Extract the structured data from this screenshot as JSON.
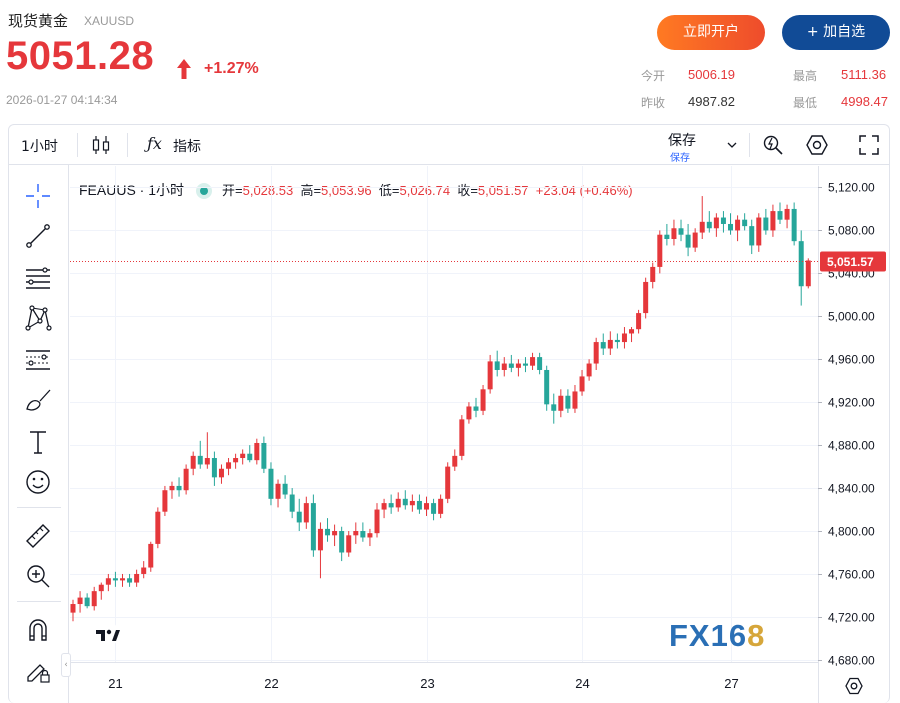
{
  "header": {
    "name": "现货黄金",
    "symbol": "XAUUSD",
    "price": "5051.28",
    "change_pct": "+1.27%",
    "timestamp": "2026-01-27 04:14:34",
    "open_account_label": "立即开户",
    "add_watch_label": "+ 加自选"
  },
  "stats": {
    "open_label": "今开",
    "open_value": "5006.19",
    "high_label": "最高",
    "high_value": "5111.36",
    "prev_close_label": "昨收",
    "prev_close_value": "4987.82",
    "low_label": "最低",
    "low_value": "4998.47"
  },
  "toolbar": {
    "interval": "1小时",
    "indicators_label": "指标",
    "save_label": "保存",
    "save_sub": "保存"
  },
  "legend": {
    "symbol": "FEAUUS · 1小时",
    "o_label": "开=",
    "o_value": "5,028.53",
    "h_label": "高=",
    "h_value": "5,053.96",
    "l_label": "低=",
    "l_value": "5,026.74",
    "c_label": "收=",
    "c_value": "5,051.57",
    "change": "+23.04 (+0.46%)"
  },
  "watermark": {
    "part1": "FX16",
    "part2": "8"
  },
  "colors": {
    "up": "#e5373b",
    "down": "#26a69a",
    "accent": "#2962ff",
    "brand_blue": "#114b96",
    "brand_orange": "#f15a24"
  },
  "chart_data": {
    "type": "candlestick",
    "x_ticks": [
      "21",
      "22",
      "23",
      "24",
      "27"
    ],
    "y_ticks": [
      "5,120.00",
      "5,080.00",
      "5,040.00",
      "5,000.00",
      "4,960.00",
      "4,920.00",
      "4,880.00",
      "4,840.00",
      "4,800.00",
      "4,760.00",
      "4,720.00",
      "4,680.00"
    ],
    "y_tick_values": [
      5120,
      5080,
      5040,
      5000,
      4960,
      4920,
      4880,
      4840,
      4800,
      4760,
      4720,
      4680
    ],
    "ylim": [
      4678,
      5140
    ],
    "last_price_label": "5,051.57",
    "last_price": 5051.57,
    "grid": true,
    "candles": [
      [
        4724,
        4736,
        4716,
        4732
      ],
      [
        4732,
        4744,
        4724,
        4738
      ],
      [
        4738,
        4742,
        4728,
        4730
      ],
      [
        4730,
        4748,
        4726,
        4744
      ],
      [
        4744,
        4752,
        4736,
        4750
      ],
      [
        4750,
        4760,
        4744,
        4756
      ],
      [
        4756,
        4762,
        4748,
        4754
      ],
      [
        4754,
        4760,
        4748,
        4756
      ],
      [
        4756,
        4760,
        4748,
        4752
      ],
      [
        4752,
        4764,
        4748,
        4760
      ],
      [
        4760,
        4772,
        4756,
        4766
      ],
      [
        4766,
        4790,
        4762,
        4788
      ],
      [
        4788,
        4822,
        4784,
        4818
      ],
      [
        4818,
        4842,
        4814,
        4838
      ],
      [
        4838,
        4846,
        4830,
        4842
      ],
      [
        4842,
        4850,
        4832,
        4838
      ],
      [
        4838,
        4862,
        4834,
        4858
      ],
      [
        4858,
        4874,
        4852,
        4870
      ],
      [
        4870,
        4884,
        4858,
        4862
      ],
      [
        4862,
        4892,
        4858,
        4868
      ],
      [
        4868,
        4874,
        4842,
        4850
      ],
      [
        4850,
        4862,
        4844,
        4858
      ],
      [
        4858,
        4868,
        4852,
        4864
      ],
      [
        4864,
        4872,
        4858,
        4868
      ],
      [
        4868,
        4876,
        4862,
        4872
      ],
      [
        4872,
        4880,
        4864,
        4866
      ],
      [
        4866,
        4886,
        4862,
        4882
      ],
      [
        4882,
        4888,
        4854,
        4858
      ],
      [
        4858,
        4864,
        4824,
        4830
      ],
      [
        4830,
        4848,
        4822,
        4844
      ],
      [
        4844,
        4852,
        4830,
        4834
      ],
      [
        4834,
        4840,
        4812,
        4818
      ],
      [
        4818,
        4830,
        4800,
        4808
      ],
      [
        4808,
        4832,
        4802,
        4826
      ],
      [
        4826,
        4834,
        4776,
        4782
      ],
      [
        4782,
        4808,
        4756,
        4802
      ],
      [
        4802,
        4812,
        4790,
        4796
      ],
      [
        4796,
        4806,
        4786,
        4800
      ],
      [
        4800,
        4804,
        4772,
        4780
      ],
      [
        4780,
        4800,
        4776,
        4796
      ],
      [
        4796,
        4808,
        4788,
        4800
      ],
      [
        4800,
        4808,
        4790,
        4794
      ],
      [
        4794,
        4802,
        4786,
        4798
      ],
      [
        4798,
        4826,
        4794,
        4820
      ],
      [
        4820,
        4830,
        4812,
        4826
      ],
      [
        4826,
        4834,
        4816,
        4822
      ],
      [
        4822,
        4836,
        4818,
        4830
      ],
      [
        4830,
        4838,
        4820,
        4824
      ],
      [
        4824,
        4834,
        4818,
        4828
      ],
      [
        4828,
        4834,
        4816,
        4820
      ],
      [
        4820,
        4832,
        4814,
        4826
      ],
      [
        4826,
        4830,
        4810,
        4816
      ],
      [
        4816,
        4834,
        4812,
        4830
      ],
      [
        4830,
        4864,
        4826,
        4860
      ],
      [
        4860,
        4876,
        4856,
        4870
      ],
      [
        4870,
        4908,
        4866,
        4904
      ],
      [
        4904,
        4920,
        4900,
        4916
      ],
      [
        4916,
        4924,
        4906,
        4912
      ],
      [
        4912,
        4936,
        4908,
        4932
      ],
      [
        4932,
        4964,
        4928,
        4958
      ],
      [
        4958,
        4968,
        4944,
        4950
      ],
      [
        4950,
        4962,
        4944,
        4956
      ],
      [
        4956,
        4964,
        4948,
        4952
      ],
      [
        4952,
        4960,
        4944,
        4956
      ],
      [
        4956,
        4962,
        4948,
        4954
      ],
      [
        4954,
        4966,
        4950,
        4962
      ],
      [
        4962,
        4966,
        4946,
        4950
      ],
      [
        4950,
        4954,
        4912,
        4918
      ],
      [
        4918,
        4928,
        4900,
        4912
      ],
      [
        4912,
        4932,
        4906,
        4926
      ],
      [
        4926,
        4932,
        4910,
        4914
      ],
      [
        4914,
        4936,
        4910,
        4930
      ],
      [
        4930,
        4950,
        4926,
        4944
      ],
      [
        4944,
        4960,
        4940,
        4956
      ],
      [
        4956,
        4980,
        4950,
        4976
      ],
      [
        4976,
        4984,
        4964,
        4970
      ],
      [
        4970,
        4986,
        4964,
        4978
      ],
      [
        4978,
        4984,
        4970,
        4976
      ],
      [
        4976,
        4990,
        4970,
        4984
      ],
      [
        4984,
        4990,
        4976,
        4988
      ],
      [
        4988,
        5006,
        4984,
        5003
      ],
      [
        5003,
        5036,
        4998,
        5032
      ],
      [
        5032,
        5050,
        5026,
        5046
      ],
      [
        5046,
        5080,
        5040,
        5076
      ],
      [
        5076,
        5086,
        5066,
        5072
      ],
      [
        5072,
        5090,
        5066,
        5082
      ],
      [
        5082,
        5090,
        5070,
        5076
      ],
      [
        5076,
        5086,
        5056,
        5064
      ],
      [
        5064,
        5082,
        5060,
        5078
      ],
      [
        5078,
        5112,
        5072,
        5088
      ],
      [
        5088,
        5098,
        5078,
        5082
      ],
      [
        5082,
        5096,
        5074,
        5092
      ],
      [
        5092,
        5098,
        5078,
        5086
      ],
      [
        5086,
        5096,
        5076,
        5080
      ],
      [
        5080,
        5094,
        5070,
        5090
      ],
      [
        5090,
        5096,
        5080,
        5084
      ],
      [
        5084,
        5090,
        5058,
        5066
      ],
      [
        5066,
        5096,
        5060,
        5092
      ],
      [
        5092,
        5100,
        5076,
        5080
      ],
      [
        5080,
        5104,
        5074,
        5098
      ],
      [
        5098,
        5106,
        5086,
        5090
      ],
      [
        5090,
        5104,
        5082,
        5100
      ],
      [
        5100,
        5106,
        5066,
        5070
      ],
      [
        5070,
        5080,
        5010,
        5028
      ],
      [
        5028,
        5054,
        5026,
        5052
      ]
    ]
  }
}
